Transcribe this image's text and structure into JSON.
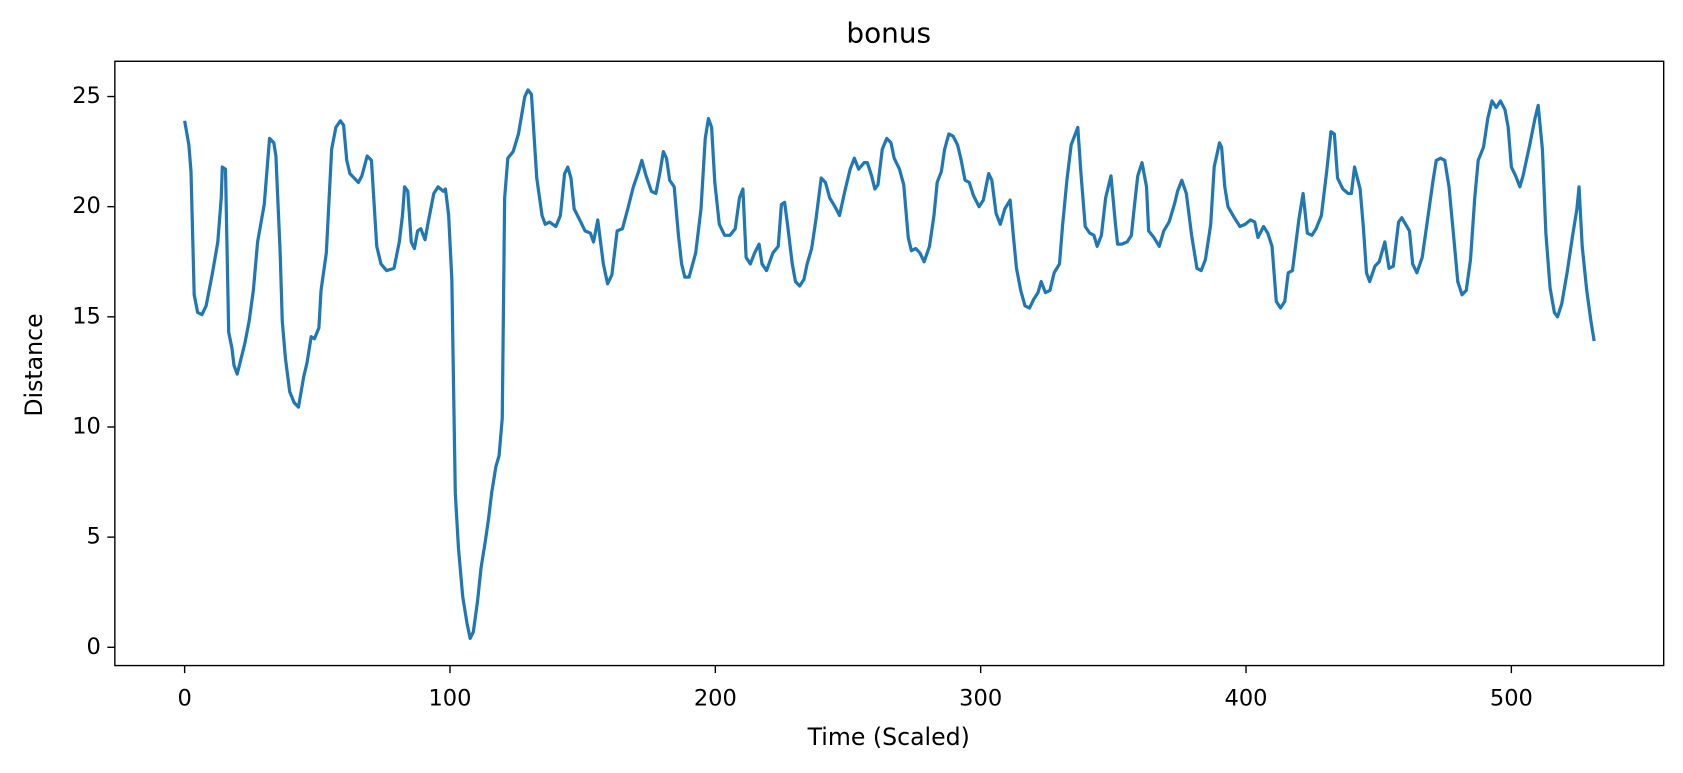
{
  "chart_data": {
    "type": "line",
    "title": "bonus",
    "x_label": "Time (Scaled)",
    "y_label": "Distance",
    "color": "#1f77b4",
    "xlim": [
      -26.3,
      557.4
    ],
    "ylim": [
      -0.83,
      26.6
    ],
    "xticks": [
      0,
      100,
      200,
      300,
      400,
      500
    ],
    "yticks": [
      0,
      5,
      10,
      15,
      20,
      25
    ],
    "x": [
      0,
      1.6,
      2.4,
      3.6,
      4.9,
      6.5,
      8.1,
      10.5,
      12.5,
      13.8,
      14.2,
      15.4,
      16.6,
      17.8,
      18.6,
      19.8,
      22.7,
      24.3,
      25.9,
      27.5,
      30,
      32,
      33.6,
      34.4,
      36,
      36.8,
      38,
      39.6,
      41.3,
      42.9,
      44.9,
      46.1,
      47.7,
      48.9,
      50.6,
      51.4,
      53.4,
      55.4,
      57,
      58.7,
      59.9,
      61.1,
      62.3,
      65.5,
      66.8,
      68.8,
      70.4,
      72.4,
      74,
      76.1,
      78.9,
      80.9,
      82.1,
      82.9,
      84.1,
      85.4,
      86.6,
      87.8,
      89,
      90.6,
      91.8,
      93.9,
      95.5,
      97.5,
      98.3,
      99.5,
      100.7,
      102,
      103.2,
      104.8,
      106.4,
      107.6,
      108.8,
      110.4,
      111.7,
      113.3,
      114.5,
      115.7,
      117.3,
      118.5,
      119.7,
      120.6,
      121.8,
      123.8,
      125.8,
      128.2,
      129.4,
      130.7,
      132.7,
      134.7,
      135.9,
      137.5,
      139.9,
      141.6,
      143.2,
      144.4,
      145.6,
      146.8,
      148.9,
      150.9,
      152.9,
      154.1,
      155.7,
      157.8,
      159.4,
      161,
      163,
      165,
      167,
      169.1,
      171.1,
      172.3,
      173.9,
      175.9,
      177.6,
      179.2,
      180.4,
      181.6,
      182.8,
      184.5,
      186.1,
      187.3,
      188.5,
      190.1,
      192.6,
      194.6,
      196.2,
      197.4,
      198.6,
      199.8,
      201.5,
      203.5,
      205.5,
      207.5,
      209.1,
      210.4,
      211.6,
      213.2,
      214.8,
      216.5,
      217.6,
      219.3,
      221.7,
      223.7,
      224.9,
      226.1,
      227.3,
      229,
      230.2,
      231.8,
      233.4,
      234.6,
      236.3,
      237.9,
      239.9,
      241.5,
      243.1,
      245.1,
      246.8,
      248.8,
      250.8,
      252.4,
      254,
      256.1,
      257.3,
      258.9,
      260.1,
      261.3,
      262.9,
      264.6,
      266.2,
      267.4,
      269.4,
      271,
      272.7,
      273.9,
      275.5,
      277.1,
      278.7,
      280.7,
      282.4,
      283.6,
      285.2,
      286.4,
      288,
      289.6,
      291.3,
      292.5,
      294.1,
      295.7,
      297.3,
      299.4,
      301,
      303,
      304.2,
      305.8,
      307.4,
      309.1,
      311.1,
      312.3,
      313.5,
      315.1,
      316.7,
      318.4,
      320,
      321.6,
      322.8,
      324.4,
      326.1,
      327.7,
      329.7,
      330.9,
      332.5,
      334.1,
      336.6,
      337.8,
      339.4,
      341.1,
      342.7,
      343.9,
      345.5,
      347.1,
      349.1,
      350.8,
      351.6,
      353.2,
      355.2,
      356.8,
      358,
      359.2,
      360.8,
      362.5,
      363.3,
      365.3,
      367.3,
      369,
      371,
      373,
      374.2,
      375.8,
      377.5,
      379.5,
      381.5,
      383.1,
      384.7,
      386.7,
      388,
      390,
      390.8,
      392,
      393.2,
      395.6,
      397.7,
      399.7,
      401.7,
      403.3,
      404.5,
      406.6,
      408.2,
      409.8,
      411.4,
      413,
      414.6,
      415.9,
      417.5,
      419.9,
      421.5,
      423.1,
      424.8,
      426.4,
      428.4,
      430.4,
      432,
      433.3,
      434.5,
      436.5,
      438.5,
      439.7,
      440.9,
      443,
      444.2,
      445.4,
      446.6,
      448.6,
      450.2,
      452.3,
      453.9,
      455.5,
      457.5,
      458.7,
      461.6,
      462.8,
      464.4,
      466.4,
      468.4,
      470.5,
      471.7,
      473.3,
      474.9,
      476.5,
      478.6,
      479.8,
      481.4,
      483,
      484.6,
      486.2,
      487.5,
      489.5,
      491.1,
      492.7,
      494.3,
      495.9,
      497.6,
      498.8,
      500,
      501.6,
      503.2,
      504.4,
      506.9,
      508.9,
      510.1,
      511.7,
      513,
      514.6,
      516.2,
      517.4,
      519,
      521,
      523.1,
      524.7,
      525.5,
      526.7,
      528.4,
      530,
      531.2
    ],
    "values": [
      23.9,
      22.8,
      21.6,
      16,
      15.2,
      15.1,
      15.5,
      17,
      18.4,
      20.4,
      21.8,
      21.7,
      14.3,
      13.6,
      12.8,
      12.4,
      13.8,
      14.8,
      16.2,
      18.4,
      20.1,
      23.1,
      22.9,
      22.3,
      17.9,
      14.8,
      13.1,
      11.6,
      11.1,
      10.9,
      12.3,
      12.9,
      14.1,
      14,
      14.5,
      16.2,
      17.9,
      22.6,
      23.6,
      23.9,
      23.7,
      22.1,
      21.5,
      21.1,
      21.4,
      22.3,
      22.1,
      18.2,
      17.4,
      17.1,
      17.2,
      18.4,
      19.6,
      20.9,
      20.7,
      18.4,
      18.1,
      18.9,
      19,
      18.5,
      19.3,
      20.6,
      20.9,
      20.7,
      20.8,
      19.6,
      16.7,
      7,
      4.5,
      2.3,
      1.1,
      0.4,
      0.7,
      2.1,
      3.6,
      4.8,
      5.8,
      7,
      8.2,
      8.7,
      10.4,
      20.4,
      22.2,
      22.5,
      23.3,
      25,
      25.3,
      25.1,
      21.3,
      19.6,
      19.2,
      19.3,
      19.1,
      19.6,
      21.5,
      21.8,
      21.3,
      19.9,
      19.4,
      18.9,
      18.8,
      18.4,
      19.4,
      17.4,
      16.5,
      16.9,
      18.9,
      19,
      19.9,
      20.9,
      21.6,
      22.1,
      21.4,
      20.7,
      20.6,
      21.6,
      22.5,
      22.2,
      21.2,
      20.9,
      18.7,
      17.4,
      16.8,
      16.8,
      17.9,
      19.9,
      23.1,
      24,
      23.6,
      21.1,
      19.2,
      18.7,
      18.7,
      19,
      20.4,
      20.8,
      17.7,
      17.4,
      17.9,
      18.3,
      17.4,
      17.1,
      17.9,
      18.2,
      20.1,
      20.2,
      19.1,
      17.4,
      16.6,
      16.4,
      16.7,
      17.4,
      18.1,
      19.4,
      21.3,
      21.1,
      20.4,
      20,
      19.6,
      20.7,
      21.7,
      22.2,
      21.7,
      22,
      22,
      21.4,
      20.8,
      21,
      22.6,
      23.1,
      22.9,
      22.2,
      21.7,
      21,
      18.6,
      18,
      18.1,
      17.9,
      17.5,
      18.2,
      19.6,
      21.1,
      21.6,
      22.6,
      23.3,
      23.2,
      22.8,
      22.2,
      21.2,
      21.1,
      20.5,
      20,
      20.3,
      21.5,
      21.2,
      19.7,
      19.2,
      19.9,
      20.3,
      18.7,
      17.2,
      16.2,
      15.5,
      15.4,
      15.8,
      16.1,
      16.6,
      16.1,
      16.2,
      17,
      17.4,
      19.2,
      21.2,
      22.8,
      23.6,
      21.5,
      19.1,
      18.8,
      18.7,
      18.2,
      18.7,
      20.4,
      21.4,
      19.2,
      18.3,
      18.3,
      18.4,
      18.7,
      20.1,
      21.4,
      22,
      20.9,
      18.9,
      18.6,
      18.2,
      18.9,
      19.3,
      20.1,
      20.7,
      21.2,
      20.6,
      18.7,
      17.2,
      17.1,
      17.6,
      19.2,
      21.8,
      22.9,
      22.7,
      20.9,
      20,
      19.5,
      19.1,
      19.2,
      19.4,
      19.3,
      18.6,
      19.1,
      18.8,
      18.2,
      15.7,
      15.4,
      15.7,
      17,
      17.1,
      19.4,
      20.6,
      18.8,
      18.7,
      19,
      19.6,
      21.6,
      23.4,
      23.3,
      21.3,
      20.8,
      20.6,
      20.6,
      21.8,
      20.8,
      19.1,
      17,
      16.6,
      17.3,
      17.5,
      18.4,
      17.2,
      17.3,
      19.3,
      19.5,
      18.9,
      17.4,
      17,
      17.7,
      19.4,
      21.2,
      22.1,
      22.2,
      22.1,
      20.9,
      18.2,
      16.6,
      16,
      16.2,
      17.6,
      20.4,
      22.1,
      22.7,
      24,
      24.8,
      24.5,
      24.8,
      24.4,
      23.6,
      21.8,
      21.4,
      20.9,
      21.4,
      22.8,
      24,
      24.6,
      22.6,
      18.8,
      16.3,
      15.2,
      15,
      15.6,
      17,
      18.7,
      19.9,
      20.9,
      18.2,
      16.2,
      14.8,
      13.9
    ]
  }
}
